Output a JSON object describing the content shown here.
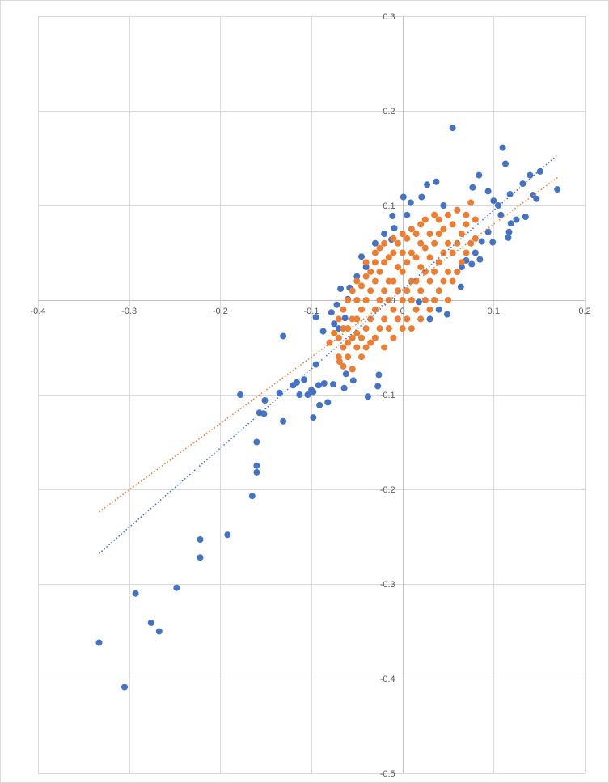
{
  "chart_data": {
    "type": "scatter",
    "title": "",
    "xlabel": "",
    "ylabel": "",
    "xlim": [
      -0.4,
      0.2
    ],
    "ylim": [
      -0.5,
      0.3
    ],
    "x_ticks": [
      "-0.4",
      "-0.3",
      "-0.2",
      "-0.1",
      "0",
      "0.1",
      "0.2"
    ],
    "x_tick_values": [
      -0.4,
      -0.3,
      -0.2,
      -0.1,
      0,
      0.1,
      0.2
    ],
    "y_ticks": [
      "0.3",
      "0.2",
      "0.1",
      "0",
      "-0.1",
      "-0.2",
      "-0.3",
      "-0.4",
      "-0.5"
    ],
    "y_tick_values": [
      0.3,
      0.2,
      0.1,
      0,
      -0.1,
      -0.2,
      -0.3,
      -0.4,
      -0.5
    ],
    "grid": true,
    "legend": "none",
    "series": [
      {
        "color": "#4472C4",
        "trendline": {
          "style": "dotted",
          "slope": 0.837,
          "intercept": 0.011,
          "x_range": [
            -0.333,
            0.17
          ]
        },
        "points": [
          [
            -0.333,
            -0.362
          ],
          [
            -0.305,
            -0.409
          ],
          [
            -0.293,
            -0.31
          ],
          [
            -0.276,
            -0.341
          ],
          [
            -0.267,
            -0.35
          ],
          [
            -0.248,
            -0.304
          ],
          [
            -0.222,
            -0.253
          ],
          [
            -0.222,
            -0.272
          ],
          [
            -0.192,
            -0.248
          ],
          [
            -0.165,
            -0.207
          ],
          [
            -0.16,
            -0.182
          ],
          [
            -0.16,
            -0.175
          ],
          [
            -0.16,
            -0.15
          ],
          [
            -0.178,
            -0.1
          ],
          [
            -0.157,
            -0.119
          ],
          [
            -0.152,
            -0.12
          ],
          [
            -0.151,
            -0.106
          ],
          [
            -0.131,
            -0.128
          ],
          [
            -0.135,
            -0.098
          ],
          [
            -0.131,
            -0.038
          ],
          [
            -0.116,
            -0.087
          ],
          [
            -0.108,
            -0.084
          ],
          [
            -0.098,
            -0.124
          ],
          [
            -0.098,
            -0.097
          ],
          [
            -0.091,
            -0.111
          ],
          [
            -0.082,
            -0.108
          ],
          [
            -0.076,
            -0.089
          ],
          [
            -0.095,
            -0.068
          ],
          [
            -0.087,
            -0.033
          ],
          [
            -0.095,
            -0.018
          ],
          [
            -0.038,
            -0.102
          ],
          [
            -0.027,
            -0.091
          ],
          [
            -0.026,
            -0.079
          ],
          [
            -0.064,
            -0.093
          ],
          [
            -0.054,
            -0.085
          ],
          [
            -0.062,
            -0.078
          ],
          [
            -0.113,
            -0.1
          ],
          [
            -0.104,
            -0.1
          ],
          [
            -0.092,
            -0.09
          ],
          [
            -0.086,
            -0.088
          ],
          [
            -0.1,
            -0.095
          ],
          [
            -0.12,
            -0.09
          ],
          [
            0.055,
            0.182
          ],
          [
            0.11,
            0.161
          ],
          [
            0.113,
            0.144
          ],
          [
            0.084,
            0.132
          ],
          [
            0.132,
            0.123
          ],
          [
            0.14,
            0.132
          ],
          [
            0.151,
            0.136
          ],
          [
            0.17,
            0.117
          ],
          [
            0.037,
            0.125
          ],
          [
            0.027,
            0.122
          ],
          [
            0.021,
            0.109
          ],
          [
            0.077,
            0.119
          ],
          [
            0.147,
            0.107
          ],
          [
            0.143,
            0.111
          ],
          [
            0.094,
            0.115
          ],
          [
            0.118,
            0.112
          ],
          [
            -0.011,
            0.089
          ],
          [
            -0.012,
            0.064
          ],
          [
            -0.009,
            0.076
          ],
          [
            -0.045,
            0.046
          ],
          [
            0.135,
            0.088
          ],
          [
            0.119,
            0.081
          ],
          [
            0.117,
            0.072
          ],
          [
            0.116,
            0.066
          ],
          [
            0.099,
            0.061
          ],
          [
            0.087,
            0.062
          ],
          [
            0.094,
            0.072
          ],
          [
            0.085,
            0.043
          ],
          [
            0.07,
            0.042
          ],
          [
            0.076,
            0.038
          ],
          [
            0.064,
            0.014
          ],
          [
            0.049,
            -0.015
          ],
          [
            0.018,
            -0.002
          ],
          [
            -0.06,
            0.001
          ],
          [
            -0.072,
            -0.005
          ],
          [
            -0.058,
            0.013
          ],
          [
            -0.063,
            -0.019
          ],
          [
            -0.078,
            -0.013
          ],
          [
            0.001,
            0.109
          ],
          [
            0.009,
            0.103
          ],
          [
            0.1,
            0.105
          ],
          [
            0.105,
            0.1
          ],
          [
            0.125,
            0.085
          ],
          [
            0.108,
            0.09
          ],
          [
            0.06,
            0.095
          ],
          [
            0.045,
            0.1
          ],
          [
            -0.03,
            0.06
          ],
          [
            -0.02,
            0.07
          ],
          [
            0.005,
            0.09
          ],
          [
            -0.04,
            0.035
          ],
          [
            0.06,
            0.03
          ],
          [
            0.065,
            0.035
          ],
          [
            0.04,
            -0.01
          ],
          [
            -0.07,
            -0.03
          ],
          [
            -0.075,
            -0.025
          ],
          [
            -0.068,
            0.012
          ],
          [
            -0.05,
            0.025
          ],
          [
            0.03,
            -0.02
          ],
          [
            0.08,
            0.05
          ]
        ]
      },
      {
        "color": "#ED7D31",
        "trendline": {
          "style": "dotted",
          "slope": 0.702,
          "intercept": 0.01,
          "x_range": [
            -0.333,
            0.17
          ]
        },
        "points": [
          [
            -0.07,
            -0.04
          ],
          [
            -0.07,
            -0.06
          ],
          [
            -0.07,
            -0.02
          ],
          [
            -0.065,
            -0.03
          ],
          [
            -0.065,
            -0.05
          ],
          [
            -0.065,
            -0.01
          ],
          [
            -0.065,
            -0.07
          ],
          [
            -0.06,
            -0.06
          ],
          [
            -0.06,
            -0.03
          ],
          [
            -0.06,
            0.0
          ],
          [
            -0.06,
            -0.045
          ],
          [
            -0.055,
            -0.02
          ],
          [
            -0.055,
            -0.04
          ],
          [
            -0.055,
            0.01
          ],
          [
            -0.055,
            -0.073
          ],
          [
            -0.05,
            -0.05
          ],
          [
            -0.05,
            -0.02
          ],
          [
            -0.05,
            0.0
          ],
          [
            -0.05,
            0.02
          ],
          [
            -0.05,
            -0.035
          ],
          [
            -0.045,
            -0.04
          ],
          [
            -0.045,
            -0.01
          ],
          [
            -0.045,
            0.015
          ],
          [
            -0.045,
            -0.06
          ],
          [
            -0.04,
            -0.03
          ],
          [
            -0.04,
            0.0
          ],
          [
            -0.04,
            0.025
          ],
          [
            -0.04,
            -0.05
          ],
          [
            -0.04,
            0.04
          ],
          [
            -0.035,
            -0.02
          ],
          [
            -0.035,
            0.01
          ],
          [
            -0.035,
            0.03
          ],
          [
            -0.035,
            -0.045
          ],
          [
            -0.03,
            -0.04
          ],
          [
            -0.03,
            -0.01
          ],
          [
            -0.03,
            0.02
          ],
          [
            -0.03,
            0.04
          ],
          [
            -0.03,
            0.05
          ],
          [
            -0.025,
            -0.03
          ],
          [
            -0.025,
            0.0
          ],
          [
            -0.025,
            0.03
          ],
          [
            -0.025,
            0.055
          ],
          [
            -0.02,
            -0.05
          ],
          [
            -0.02,
            -0.02
          ],
          [
            -0.02,
            0.01
          ],
          [
            -0.02,
            0.04
          ],
          [
            -0.02,
            0.06
          ],
          [
            -0.015,
            -0.03
          ],
          [
            -0.015,
            0.0
          ],
          [
            -0.015,
            0.02
          ],
          [
            -0.015,
            0.045
          ],
          [
            -0.01,
            -0.04
          ],
          [
            -0.01,
            -0.01
          ],
          [
            -0.01,
            0.02
          ],
          [
            -0.01,
            0.05
          ],
          [
            -0.01,
            0.065
          ],
          [
            -0.005,
            -0.02
          ],
          [
            -0.005,
            0.01
          ],
          [
            -0.005,
            0.035
          ],
          [
            -0.005,
            0.06
          ],
          [
            0.0,
            -0.03
          ],
          [
            0.0,
            0.0
          ],
          [
            0.0,
            0.03
          ],
          [
            0.0,
            0.05
          ],
          [
            0.0,
            0.07
          ],
          [
            0.005,
            -0.02
          ],
          [
            0.005,
            0.01
          ],
          [
            0.005,
            0.04
          ],
          [
            0.005,
            0.065
          ],
          [
            0.01,
            -0.03
          ],
          [
            0.01,
            0.0
          ],
          [
            0.01,
            0.02
          ],
          [
            0.01,
            0.05
          ],
          [
            0.01,
            0.075
          ],
          [
            0.015,
            -0.01
          ],
          [
            0.015,
            0.02
          ],
          [
            0.015,
            0.045
          ],
          [
            0.015,
            0.07
          ],
          [
            0.02,
            -0.02
          ],
          [
            0.02,
            0.01
          ],
          [
            0.02,
            0.035
          ],
          [
            0.02,
            0.06
          ],
          [
            0.02,
            0.08
          ],
          [
            0.025,
            0.0
          ],
          [
            0.025,
            0.03
          ],
          [
            0.025,
            0.055
          ],
          [
            0.025,
            0.085
          ],
          [
            0.03,
            -0.01
          ],
          [
            0.03,
            0.02
          ],
          [
            0.03,
            0.045
          ],
          [
            0.03,
            0.07
          ],
          [
            0.035,
            0.0
          ],
          [
            0.035,
            0.03
          ],
          [
            0.035,
            0.06
          ],
          [
            0.035,
            0.09
          ],
          [
            0.04,
            0.01
          ],
          [
            0.04,
            0.04
          ],
          [
            0.04,
            0.07
          ],
          [
            0.04,
            0.085
          ],
          [
            0.045,
            0.02
          ],
          [
            0.045,
            0.05
          ],
          [
            0.045,
            0.075
          ],
          [
            0.05,
            0.0
          ],
          [
            0.05,
            0.03
          ],
          [
            0.05,
            0.06
          ],
          [
            0.05,
            0.09
          ],
          [
            0.055,
            0.02
          ],
          [
            0.055,
            0.05
          ],
          [
            0.055,
            0.08
          ],
          [
            0.06,
            0.03
          ],
          [
            0.06,
            0.06
          ],
          [
            0.06,
            0.095
          ],
          [
            0.065,
            0.04
          ],
          [
            0.065,
            0.07
          ],
          [
            0.07,
            0.05
          ],
          [
            0.07,
            0.08
          ],
          [
            0.07,
            0.09
          ],
          [
            0.075,
            0.06
          ],
          [
            0.075,
            0.103
          ],
          [
            0.08,
            0.065
          ],
          [
            0.08,
            0.085
          ],
          [
            -0.069,
            -0.065
          ],
          [
            -0.055,
            -0.073
          ],
          [
            -0.08,
            -0.045
          ],
          [
            -0.075,
            -0.035
          ]
        ]
      }
    ]
  }
}
